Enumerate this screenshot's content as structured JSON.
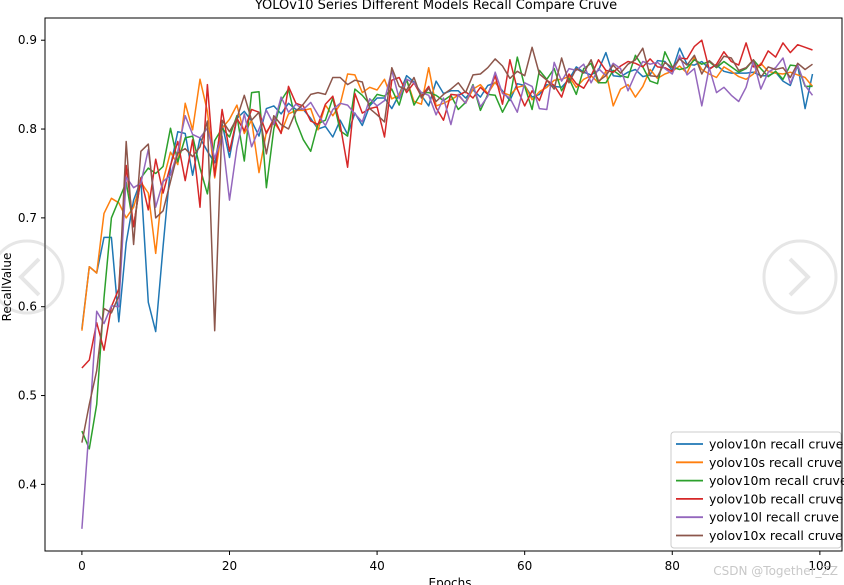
{
  "chart_data": {
    "type": "line",
    "title": "YOLOv10 Series Different Models Recall Compare Cruve",
    "xlabel": "Epochs",
    "ylabel": "RecallValue",
    "xlim": [
      -5,
      103
    ],
    "ylim": [
      0.325,
      0.925
    ],
    "xticks": [
      0,
      20,
      40,
      60,
      80,
      100
    ],
    "yticks": [
      0.4,
      0.5,
      0.6,
      0.7,
      0.8,
      0.9
    ],
    "grid": false,
    "legend_position": "lower-right",
    "series": [
      {
        "name": "yolov10n recall cruve",
        "color": "#1f77b4",
        "values": [
          0.575,
          0.645,
          0.638,
          0.678,
          0.678,
          0.583,
          0.672,
          0.72,
          0.742,
          0.605,
          0.572,
          0.668,
          0.758,
          0.797,
          0.795,
          0.748,
          0.79,
          0.775,
          0.762,
          0.806,
          0.768,
          0.812,
          0.82,
          0.809,
          0.792,
          0.823,
          0.826,
          0.817,
          0.829,
          0.822,
          0.822,
          0.812,
          0.8,
          0.803,
          0.791,
          0.81,
          0.794,
          0.818,
          0.804,
          0.826,
          0.835,
          0.835,
          0.823,
          0.839,
          0.86,
          0.853,
          0.838,
          0.826,
          0.854,
          0.84,
          0.843,
          0.843,
          0.835,
          0.844,
          0.836,
          0.849,
          0.852,
          0.843,
          0.832,
          0.851,
          0.849,
          0.836,
          0.839,
          0.85,
          0.848,
          0.847,
          0.856,
          0.87,
          0.864,
          0.861,
          0.866,
          0.886,
          0.86,
          0.859,
          0.864,
          0.867,
          0.859,
          0.861,
          0.877,
          0.876,
          0.866,
          0.891,
          0.873,
          0.872,
          0.876,
          0.868,
          0.872,
          0.865,
          0.863,
          0.863,
          0.863,
          0.864,
          0.86,
          0.86,
          0.864,
          0.854,
          0.849,
          0.872,
          0.823,
          0.862
        ]
      },
      {
        "name": "yolov10s recall cruve",
        "color": "#ff7f0e",
        "values": [
          0.573,
          0.645,
          0.638,
          0.705,
          0.722,
          0.717,
          0.7,
          0.712,
          0.74,
          0.728,
          0.66,
          0.742,
          0.774,
          0.76,
          0.829,
          0.799,
          0.856,
          0.82,
          0.745,
          0.801,
          0.811,
          0.827,
          0.795,
          0.81,
          0.751,
          0.797,
          0.808,
          0.796,
          0.817,
          0.821,
          0.821,
          0.823,
          0.799,
          0.827,
          0.815,
          0.828,
          0.862,
          0.861,
          0.841,
          0.847,
          0.844,
          0.856,
          0.834,
          0.838,
          0.856,
          0.831,
          0.828,
          0.869,
          0.826,
          0.829,
          0.833,
          0.838,
          0.829,
          0.845,
          0.85,
          0.84,
          0.853,
          0.841,
          0.838,
          0.847,
          0.849,
          0.833,
          0.842,
          0.847,
          0.855,
          0.856,
          0.859,
          0.847,
          0.856,
          0.86,
          0.852,
          0.865,
          0.826,
          0.845,
          0.85,
          0.836,
          0.848,
          0.867,
          0.857,
          0.862,
          0.865,
          0.871,
          0.863,
          0.881,
          0.867,
          0.862,
          0.858,
          0.87,
          0.865,
          0.859,
          0.856,
          0.862,
          0.874,
          0.865,
          0.863,
          0.862,
          0.864,
          0.861,
          0.858,
          0.848
        ]
      },
      {
        "name": "yolov10m recall cruve",
        "color": "#2ca02c",
        "values": [
          0.46,
          0.44,
          0.49,
          0.61,
          0.7,
          0.72,
          0.74,
          0.69,
          0.745,
          0.756,
          0.75,
          0.758,
          0.801,
          0.763,
          0.79,
          0.792,
          0.756,
          0.727,
          0.787,
          0.801,
          0.791,
          0.815,
          0.764,
          0.841,
          0.842,
          0.734,
          0.8,
          0.832,
          0.845,
          0.809,
          0.788,
          0.775,
          0.806,
          0.81,
          0.835,
          0.798,
          0.792,
          0.845,
          0.838,
          0.828,
          0.839,
          0.837,
          0.845,
          0.827,
          0.856,
          0.827,
          0.841,
          0.841,
          0.838,
          0.832,
          0.838,
          0.822,
          0.83,
          0.85,
          0.821,
          0.839,
          0.838,
          0.819,
          0.835,
          0.881,
          0.848,
          0.822,
          0.866,
          0.856,
          0.868,
          0.843,
          0.857,
          0.839,
          0.868,
          0.874,
          0.852,
          0.852,
          0.866,
          0.86,
          0.858,
          0.883,
          0.87,
          0.854,
          0.851,
          0.887,
          0.87,
          0.867,
          0.869,
          0.878,
          0.873,
          0.876,
          0.869,
          0.876,
          0.87,
          0.864,
          0.868,
          0.878,
          0.868,
          0.859,
          0.865,
          0.856,
          0.872,
          0.871,
          0.848,
          0.848
        ]
      },
      {
        "name": "yolov10b recall cruve",
        "color": "#d62728",
        "values": [
          0.531,
          0.54,
          0.582,
          0.551,
          0.6,
          0.62,
          0.759,
          0.69,
          0.745,
          0.709,
          0.766,
          0.728,
          0.759,
          0.786,
          0.742,
          0.788,
          0.712,
          0.85,
          0.747,
          0.822,
          0.775,
          0.812,
          0.798,
          0.822,
          0.819,
          0.795,
          0.812,
          0.795,
          0.848,
          0.829,
          0.826,
          0.809,
          0.805,
          0.828,
          0.837,
          0.805,
          0.757,
          0.84,
          0.818,
          0.823,
          0.825,
          0.791,
          0.855,
          0.858,
          0.841,
          0.852,
          0.837,
          0.848,
          0.824,
          0.81,
          0.839,
          0.838,
          0.842,
          0.835,
          0.847,
          0.839,
          0.86,
          0.828,
          0.878,
          0.845,
          0.826,
          0.843,
          0.832,
          0.855,
          0.849,
          0.836,
          0.862,
          0.851,
          0.846,
          0.86,
          0.878,
          0.866,
          0.864,
          0.871,
          0.876,
          0.874,
          0.87,
          0.879,
          0.87,
          0.869,
          0.865,
          0.88,
          0.879,
          0.893,
          0.9,
          0.867,
          0.873,
          0.887,
          0.876,
          0.872,
          0.897,
          0.87,
          0.872,
          0.888,
          0.881,
          0.897,
          0.886,
          0.895,
          0.892,
          0.889
        ]
      },
      {
        "name": "yolov10l recall cruve",
        "color": "#9467bd",
        "values": [
          0.35,
          0.466,
          0.595,
          0.581,
          0.601,
          0.6,
          0.746,
          0.734,
          0.739,
          0.777,
          0.712,
          0.741,
          0.748,
          0.775,
          0.815,
          0.794,
          0.79,
          0.801,
          0.767,
          0.792,
          0.72,
          0.779,
          0.817,
          0.78,
          0.8,
          0.821,
          0.805,
          0.836,
          0.819,
          0.828,
          0.822,
          0.83,
          0.816,
          0.804,
          0.822,
          0.829,
          0.827,
          0.817,
          0.808,
          0.834,
          0.826,
          0.832,
          0.866,
          0.834,
          0.856,
          0.852,
          0.841,
          0.838,
          0.816,
          0.835,
          0.805,
          0.839,
          0.829,
          0.849,
          0.825,
          0.837,
          0.864,
          0.84,
          0.835,
          0.819,
          0.852,
          0.848,
          0.823,
          0.822,
          0.875,
          0.854,
          0.868,
          0.866,
          0.873,
          0.852,
          0.868,
          0.86,
          0.874,
          0.868,
          0.843,
          0.862,
          0.876,
          0.873,
          0.875,
          0.868,
          0.862,
          0.883,
          0.861,
          0.868,
          0.826,
          0.869,
          0.841,
          0.847,
          0.838,
          0.831,
          0.847,
          0.877,
          0.845,
          0.864,
          0.869,
          0.88,
          0.851,
          0.872,
          0.849,
          0.838
        ]
      },
      {
        "name": "yolov10x recall cruve",
        "color": "#8c564b",
        "values": [
          0.447,
          0.49,
          0.528,
          0.598,
          0.593,
          0.612,
          0.786,
          0.67,
          0.775,
          0.783,
          0.7,
          0.708,
          0.741,
          0.773,
          0.778,
          0.769,
          0.78,
          0.809,
          0.573,
          0.81,
          0.797,
          0.812,
          0.838,
          0.81,
          0.819,
          0.772,
          0.815,
          0.805,
          0.8,
          0.82,
          0.828,
          0.839,
          0.841,
          0.839,
          0.858,
          0.858,
          0.85,
          0.855,
          0.853,
          0.823,
          0.816,
          0.808,
          0.869,
          0.848,
          0.844,
          0.858,
          0.835,
          0.846,
          0.831,
          0.839,
          0.845,
          0.852,
          0.841,
          0.861,
          0.862,
          0.869,
          0.879,
          0.871,
          0.857,
          0.865,
          0.86,
          0.892,
          0.862,
          0.855,
          0.845,
          0.88,
          0.852,
          0.868,
          0.863,
          0.878,
          0.854,
          0.86,
          0.872,
          0.863,
          0.873,
          0.878,
          0.891,
          0.86,
          0.859,
          0.875,
          0.869,
          0.879,
          0.872,
          0.883,
          0.862,
          0.877,
          0.87,
          0.882,
          0.88,
          0.866,
          0.869,
          0.878,
          0.858,
          0.87,
          0.867,
          0.869,
          0.858,
          0.874,
          0.867,
          0.873
        ]
      }
    ]
  },
  "watermark": "CSDN @Together_ZZ",
  "overlay": {
    "left_icon": "chevron-left-icon",
    "right_icon": "chevron-right-icon"
  }
}
